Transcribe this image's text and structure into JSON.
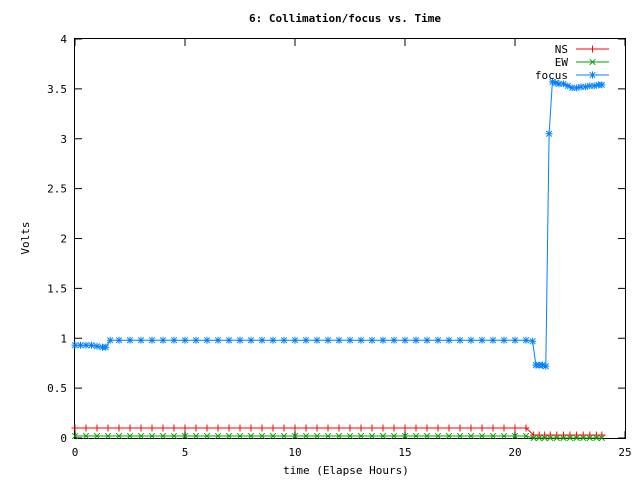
{
  "chart_data": {
    "type": "line",
    "title": "6: Collimation/focus vs. Time",
    "xlabel": "time (Elapse Hours)",
    "ylabel": "Volts",
    "xlim": [
      0,
      25
    ],
    "ylim": [
      0,
      4
    ],
    "xticks": [
      "0",
      "5",
      "10",
      "15",
      "20",
      "25"
    ],
    "yticks": [
      "0",
      "0.5",
      "1",
      "1.5",
      "2",
      "2.5",
      "3",
      "3.5",
      "4"
    ],
    "grid": false,
    "legend_position": "top-right",
    "series": [
      {
        "name": "NS",
        "color": "#ff0000",
        "marker": "plus",
        "x": [
          0.0,
          0.5,
          1.0,
          1.5,
          2.0,
          2.5,
          3.0,
          3.5,
          4.0,
          4.5,
          5.0,
          5.5,
          6.0,
          6.5,
          7.0,
          7.5,
          8.0,
          8.5,
          9.0,
          9.5,
          10.0,
          10.5,
          11.0,
          11.5,
          12.0,
          12.5,
          13.0,
          13.5,
          14.0,
          14.5,
          15.0,
          15.5,
          16.0,
          16.5,
          17.0,
          17.5,
          18.0,
          18.5,
          19.0,
          19.5,
          20.0,
          20.5,
          20.85,
          21.1,
          21.35,
          21.6,
          21.9,
          22.2,
          22.5,
          22.8,
          23.1,
          23.4,
          23.7,
          23.95
        ],
        "y": [
          0.1,
          0.1,
          0.1,
          0.1,
          0.1,
          0.1,
          0.1,
          0.1,
          0.1,
          0.1,
          0.1,
          0.1,
          0.1,
          0.1,
          0.1,
          0.1,
          0.1,
          0.1,
          0.1,
          0.1,
          0.1,
          0.1,
          0.1,
          0.1,
          0.1,
          0.1,
          0.1,
          0.1,
          0.1,
          0.1,
          0.1,
          0.1,
          0.1,
          0.1,
          0.1,
          0.1,
          0.1,
          0.1,
          0.1,
          0.1,
          0.1,
          0.1,
          0.03,
          0.03,
          0.03,
          0.03,
          0.03,
          0.03,
          0.03,
          0.03,
          0.03,
          0.03,
          0.03,
          0.03
        ]
      },
      {
        "name": "EW",
        "color": "#00a000",
        "marker": "cross",
        "x": [
          0.0,
          0.5,
          1.0,
          1.5,
          2.0,
          2.5,
          3.0,
          3.5,
          4.0,
          4.5,
          5.0,
          5.5,
          6.0,
          6.5,
          7.0,
          7.5,
          8.0,
          8.5,
          9.0,
          9.5,
          10.0,
          10.5,
          11.0,
          11.5,
          12.0,
          12.5,
          13.0,
          13.5,
          14.0,
          14.5,
          15.0,
          15.5,
          16.0,
          16.5,
          17.0,
          17.5,
          18.0,
          18.5,
          19.0,
          19.5,
          20.0,
          20.5,
          20.85,
          21.1,
          21.35,
          21.6,
          21.9,
          22.2,
          22.5,
          22.8,
          23.1,
          23.4,
          23.7,
          23.95
        ],
        "y": [
          0.02,
          0.02,
          0.02,
          0.02,
          0.02,
          0.02,
          0.02,
          0.02,
          0.02,
          0.02,
          0.02,
          0.02,
          0.02,
          0.02,
          0.02,
          0.02,
          0.02,
          0.02,
          0.02,
          0.02,
          0.02,
          0.02,
          0.02,
          0.02,
          0.02,
          0.02,
          0.02,
          0.02,
          0.02,
          0.02,
          0.02,
          0.02,
          0.02,
          0.02,
          0.02,
          0.02,
          0.02,
          0.02,
          0.02,
          0.02,
          0.02,
          0.02,
          0.0,
          0.0,
          0.0,
          0.0,
          0.0,
          0.0,
          0.0,
          0.0,
          0.0,
          0.0,
          0.0,
          0.0
        ]
      },
      {
        "name": "focus",
        "color": "#0080ff",
        "marker": "star",
        "x": [
          0.0,
          0.25,
          0.5,
          0.75,
          1.0,
          1.25,
          1.4,
          1.6,
          2.0,
          2.5,
          3.0,
          3.5,
          4.0,
          4.5,
          5.0,
          5.5,
          6.0,
          6.5,
          7.0,
          7.5,
          8.0,
          8.5,
          9.0,
          9.5,
          10.0,
          10.5,
          11.0,
          11.5,
          12.0,
          12.5,
          13.0,
          13.5,
          14.0,
          14.5,
          15.0,
          15.5,
          16.0,
          16.5,
          17.0,
          17.5,
          18.0,
          18.5,
          19.0,
          19.5,
          20.0,
          20.5,
          20.8,
          20.95,
          21.1,
          21.25,
          21.4,
          21.55,
          21.7,
          21.85,
          22.0,
          22.2,
          22.4,
          22.6,
          22.8,
          23.0,
          23.2,
          23.4,
          23.6,
          23.8,
          23.95
        ],
        "y": [
          0.93,
          0.93,
          0.93,
          0.93,
          0.92,
          0.91,
          0.91,
          0.98,
          0.98,
          0.98,
          0.98,
          0.98,
          0.98,
          0.98,
          0.98,
          0.98,
          0.98,
          0.98,
          0.98,
          0.98,
          0.98,
          0.98,
          0.98,
          0.98,
          0.98,
          0.98,
          0.98,
          0.98,
          0.98,
          0.98,
          0.98,
          0.98,
          0.98,
          0.98,
          0.98,
          0.98,
          0.98,
          0.98,
          0.98,
          0.98,
          0.98,
          0.98,
          0.98,
          0.98,
          0.98,
          0.98,
          0.97,
          0.73,
          0.73,
          0.73,
          0.72,
          3.05,
          3.57,
          3.56,
          3.55,
          3.55,
          3.53,
          3.51,
          3.51,
          3.52,
          3.52,
          3.53,
          3.53,
          3.54,
          3.54
        ]
      }
    ]
  }
}
